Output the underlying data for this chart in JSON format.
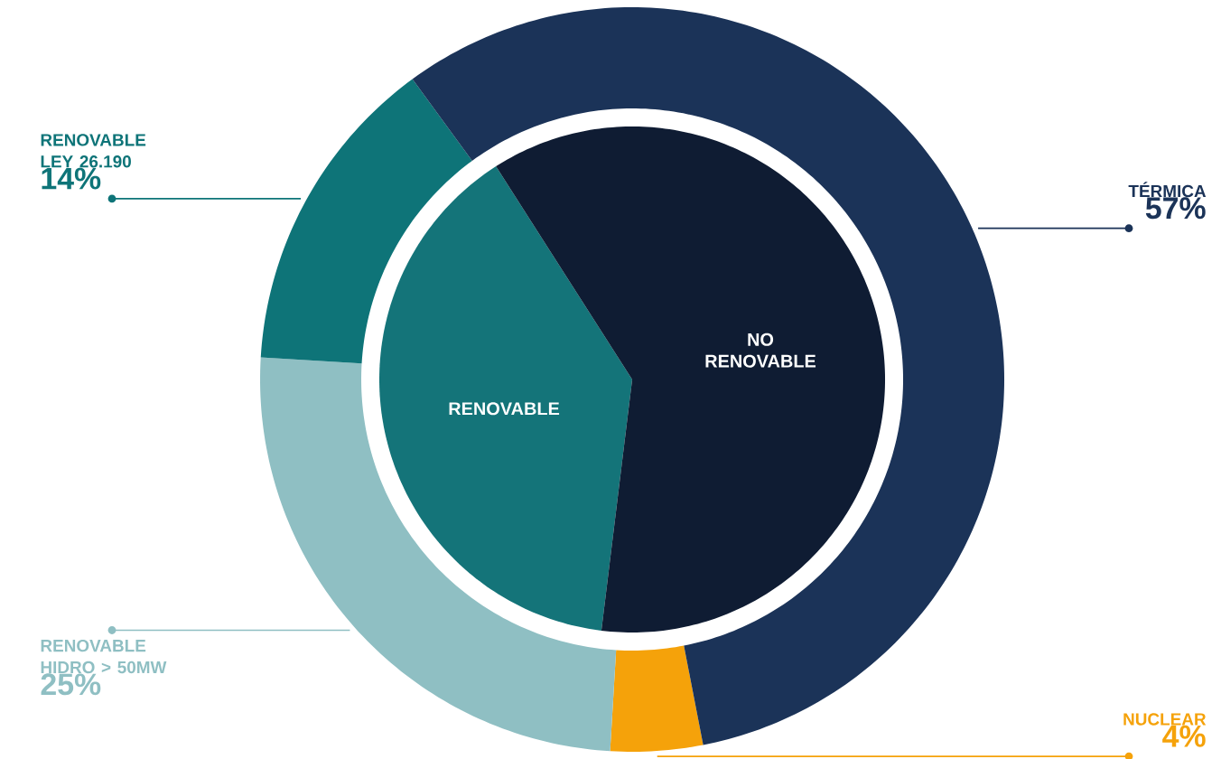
{
  "chart_data": [
    {
      "type": "donut",
      "categories": [
        "TÉRMICA",
        "RENOVABLE LEY 26.190",
        "RENOVABLE HIDRO > 50MW",
        "NUCLEAR"
      ],
      "values": [
        57,
        14,
        25,
        4
      ],
      "value_labels": [
        "57%",
        "14%",
        "25%",
        "4%"
      ],
      "colors": [
        "#1b3358",
        "#0e7478",
        "#8fbfc3",
        "#f5a20a"
      ]
    },
    {
      "type": "pie",
      "categories": [
        "NO RENOVABLE",
        "RENOVABLE"
      ],
      "values": [
        61,
        39
      ],
      "colors": [
        "#0f1c33",
        "#147479"
      ]
    }
  ]
}
